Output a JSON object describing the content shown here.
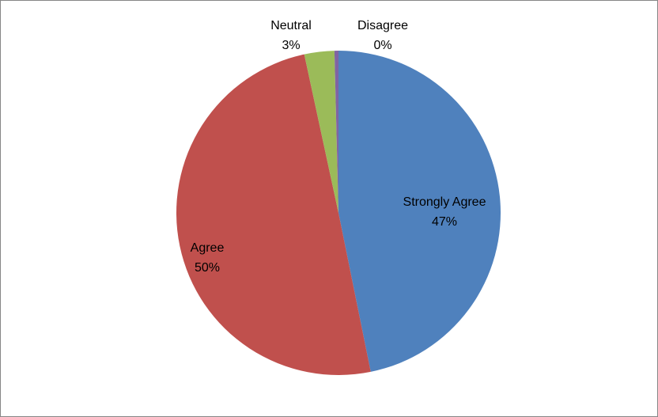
{
  "chart_data": {
    "type": "pie",
    "title": "",
    "categories": [
      "Strongly Agree",
      "Agree",
      "Neutral",
      "Disagree"
    ],
    "values": [
      47,
      50,
      3,
      0.4
    ],
    "labels": [
      {
        "name": "Strongly Agree",
        "pct": "47%"
      },
      {
        "name": "Agree",
        "pct": "50%"
      },
      {
        "name": "Neutral",
        "pct": "3%"
      },
      {
        "name": "Disagree",
        "pct": "0%"
      }
    ],
    "colors": [
      "#4F81BD",
      "#C0504D",
      "#9BBB59",
      "#8064A2"
    ],
    "start_angle": "12 o'clock",
    "direction": "clockwise",
    "legend": "none"
  }
}
